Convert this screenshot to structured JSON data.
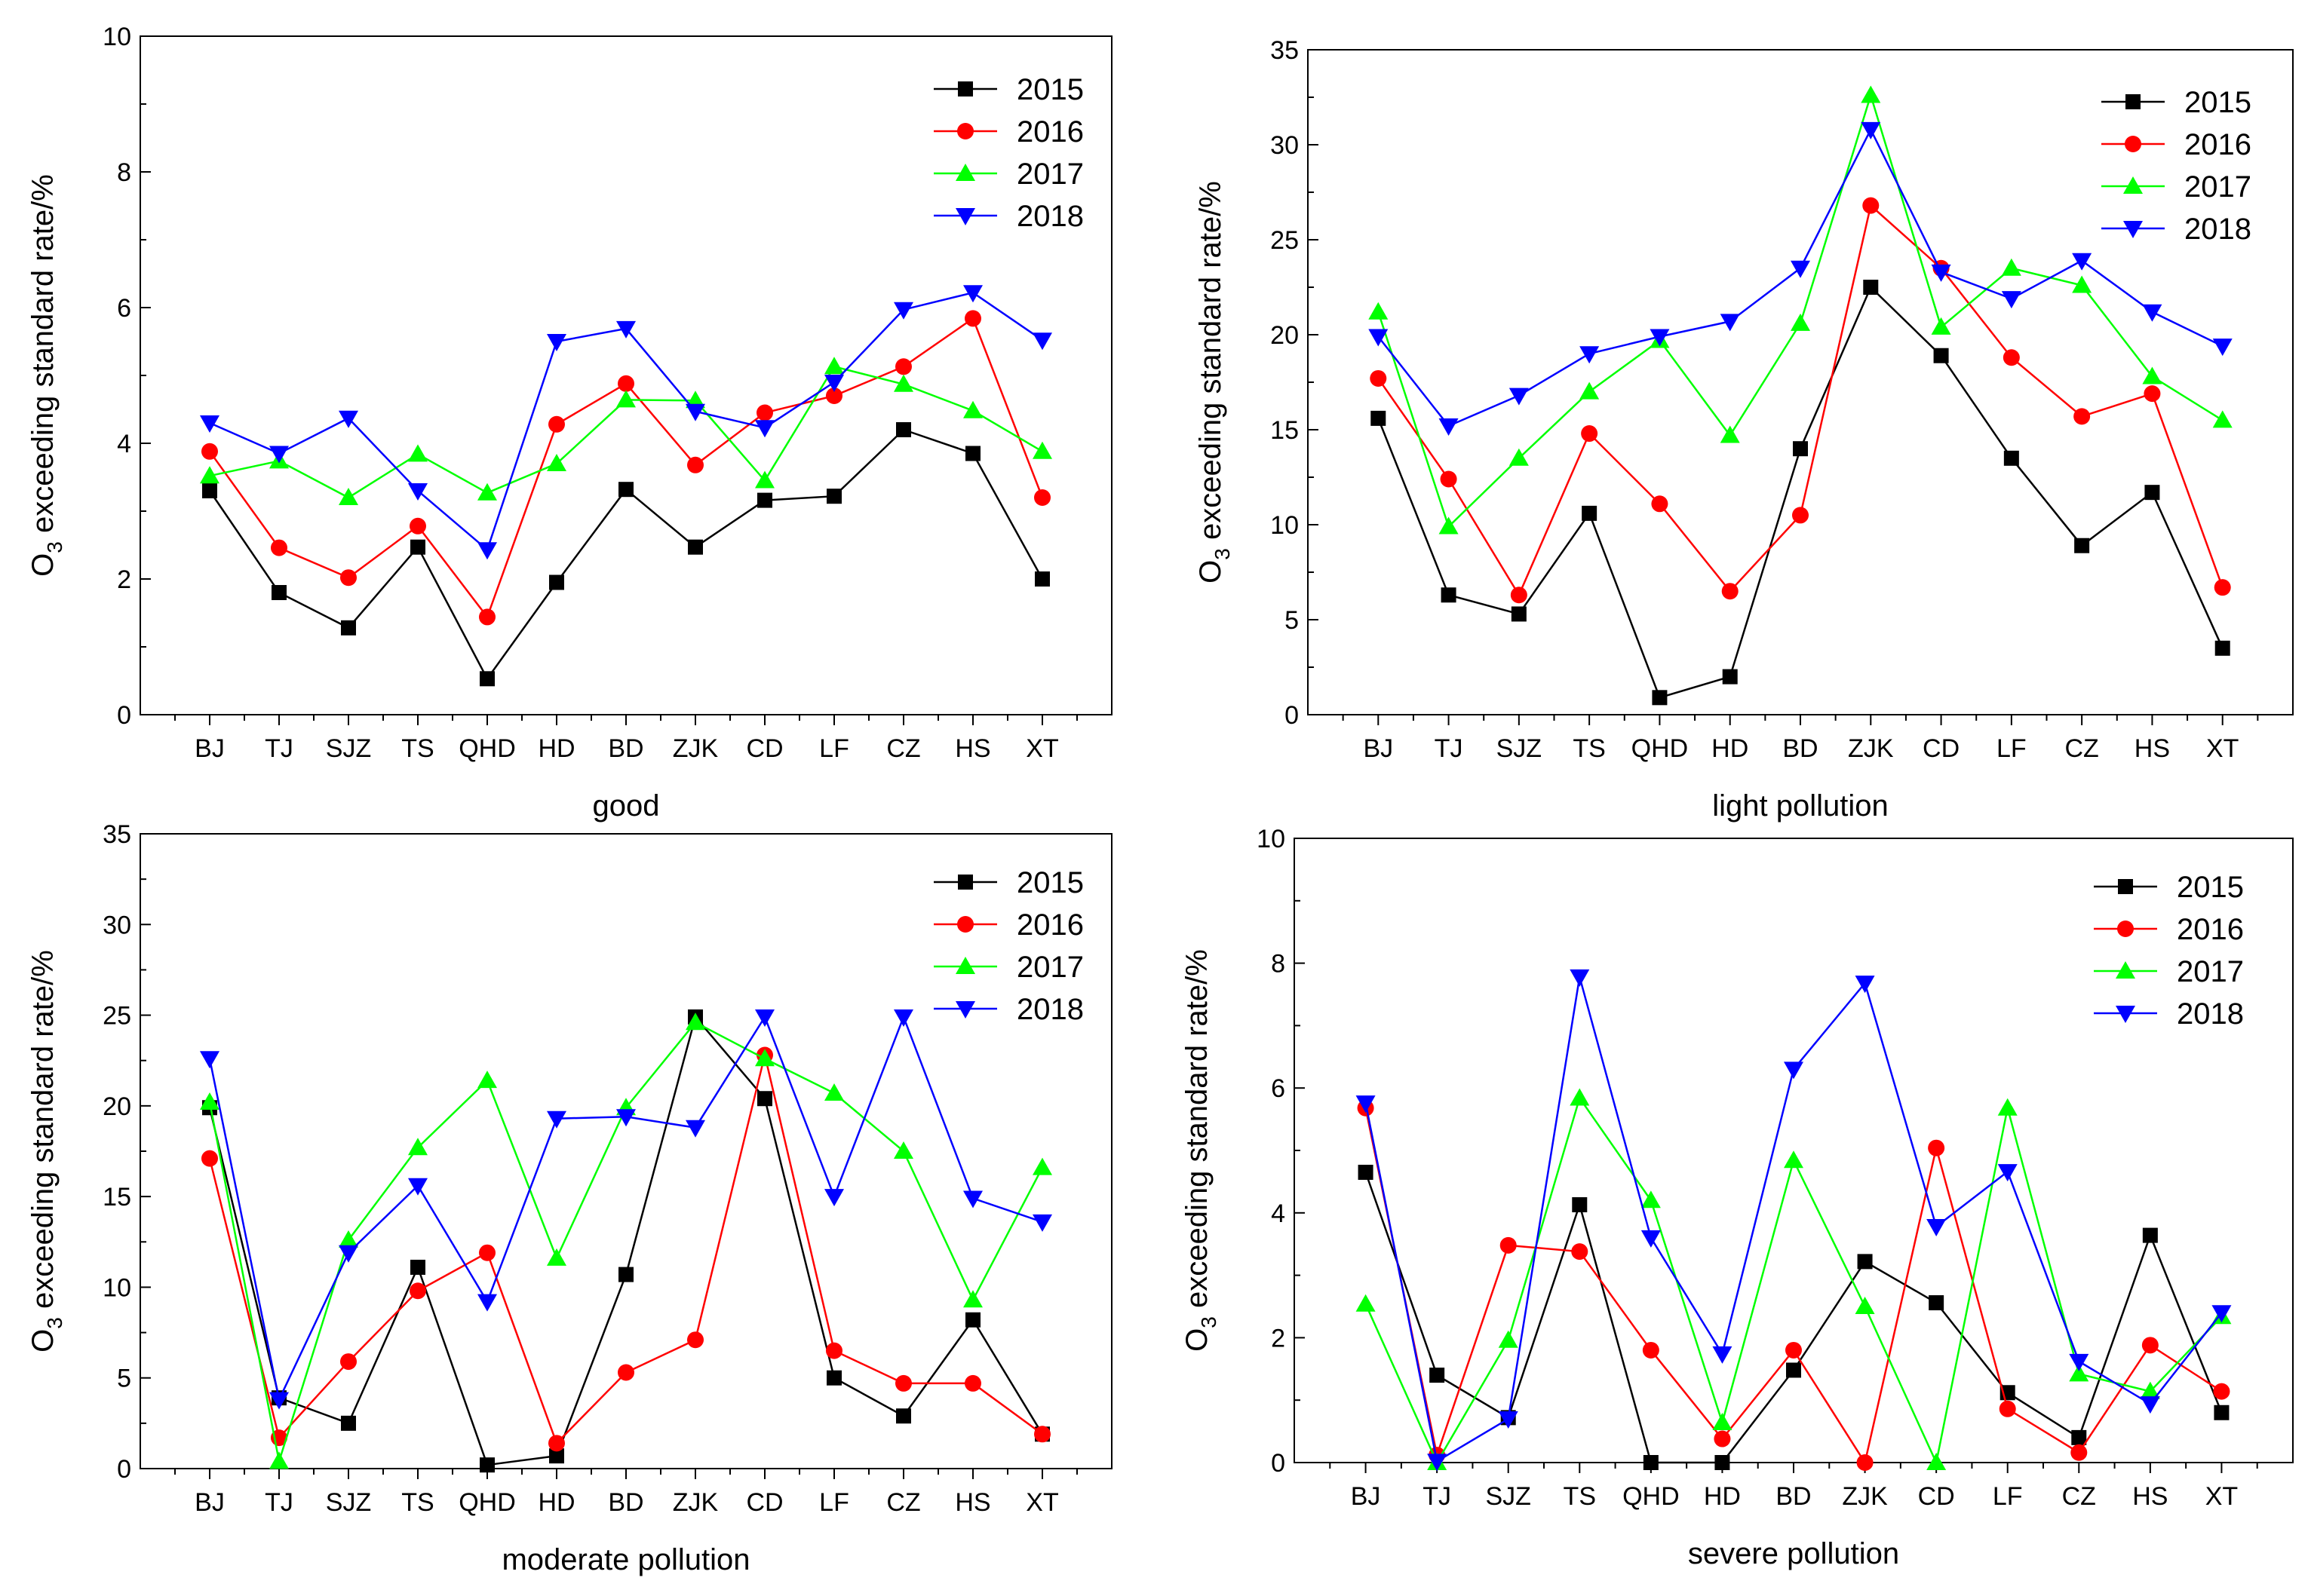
{
  "figure": {
    "series_colors": {
      "2015": "#000000",
      "2016": "#ff0000",
      "2017": "#00ff00",
      "2018": "#0000ff"
    },
    "series_markers": {
      "2015": "square",
      "2016": "circle",
      "2017": "triangle-up",
      "2018": "triangle-down"
    }
  },
  "chart_data": [
    {
      "type": "line",
      "xlabel": "good",
      "ylabel_main": "O",
      "ylabel_sub": "3",
      "ylabel_rest": " exceeding standard rate/%",
      "ylim": [
        0,
        10
      ],
      "yticks": [
        "0",
        "2",
        "4",
        "6",
        "8",
        "10"
      ],
      "categories": [
        "BJ",
        "TJ",
        "SJZ",
        "TS",
        "QHD",
        "HD",
        "BD",
        "ZJK",
        "CD",
        "LF",
        "CZ",
        "HS",
        "XT"
      ],
      "series": [
        {
          "name": "2015",
          "values": [
            3.3,
            1.8,
            1.28,
            2.47,
            0.53,
            1.95,
            3.32,
            2.47,
            3.16,
            3.22,
            4.2,
            3.85,
            2.0
          ]
        },
        {
          "name": "2016",
          "values": [
            3.88,
            2.46,
            2.02,
            2.78,
            1.44,
            4.28,
            4.88,
            3.68,
            4.45,
            4.7,
            5.13,
            5.84,
            3.2
          ]
        },
        {
          "name": "2017",
          "values": [
            3.52,
            3.74,
            3.2,
            3.84,
            3.27,
            3.7,
            4.64,
            4.63,
            3.45,
            5.13,
            4.87,
            4.48,
            3.88
          ]
        },
        {
          "name": "2018",
          "values": [
            4.3,
            3.85,
            4.37,
            3.3,
            2.43,
            5.5,
            5.69,
            4.47,
            4.23,
            4.9,
            5.97,
            6.22,
            5.52
          ]
        }
      ]
    },
    {
      "type": "line",
      "xlabel": "light pollution",
      "ylabel_main": "O",
      "ylabel_sub": "3",
      "ylabel_rest": " exceeding standard rate/%",
      "ylim": [
        0,
        35
      ],
      "yticks": [
        "0",
        "5",
        "10",
        "15",
        "20",
        "25",
        "30",
        "35"
      ],
      "categories": [
        "BJ",
        "TJ",
        "SJZ",
        "TS",
        "QHD",
        "HD",
        "BD",
        "ZJK",
        "CD",
        "LF",
        "CZ",
        "HS",
        "XT"
      ],
      "series": [
        {
          "name": "2015",
          "values": [
            15.6,
            6.3,
            5.3,
            10.6,
            0.9,
            2.0,
            14.0,
            22.5,
            18.9,
            13.5,
            8.9,
            11.7,
            3.5
          ]
        },
        {
          "name": "2016",
          "values": [
            17.7,
            12.4,
            6.3,
            14.8,
            11.1,
            6.5,
            10.5,
            26.8,
            23.5,
            18.8,
            15.7,
            16.9,
            6.7
          ]
        },
        {
          "name": "2017",
          "values": [
            21.2,
            9.9,
            13.5,
            17.0,
            19.7,
            14.7,
            20.6,
            32.6,
            20.4,
            23.5,
            22.6,
            17.8,
            15.5
          ]
        },
        {
          "name": "2018",
          "values": [
            19.9,
            15.2,
            16.8,
            19.0,
            19.9,
            20.7,
            23.5,
            30.8,
            23.3,
            21.9,
            23.9,
            21.2,
            19.4
          ]
        }
      ]
    },
    {
      "type": "line",
      "xlabel": "moderate pollution",
      "ylabel_main": "O",
      "ylabel_sub": "3",
      "ylabel_rest": " exceeding standard rate/%",
      "ylim": [
        0,
        35
      ],
      "yticks": [
        "0",
        "5",
        "10",
        "15",
        "20",
        "25",
        "30",
        "35"
      ],
      "categories": [
        "BJ",
        "TJ",
        "SJZ",
        "TS",
        "QHD",
        "HD",
        "BD",
        "ZJK",
        "CD",
        "LF",
        "CZ",
        "HS",
        "XT"
      ],
      "series": [
        {
          "name": "2015",
          "values": [
            19.9,
            3.9,
            2.5,
            11.1,
            0.2,
            0.7,
            10.7,
            24.9,
            20.4,
            5.0,
            2.9,
            8.2,
            1.9
          ]
        },
        {
          "name": "2016",
          "values": [
            17.1,
            1.7,
            5.9,
            9.8,
            11.9,
            1.4,
            5.3,
            7.1,
            22.8,
            6.5,
            4.7,
            4.7,
            1.9
          ]
        },
        {
          "name": "2017",
          "values": [
            20.2,
            0.4,
            12.6,
            17.7,
            21.4,
            11.6,
            19.9,
            24.6,
            22.6,
            20.7,
            17.5,
            9.3,
            16.6
          ]
        },
        {
          "name": "2018",
          "values": [
            22.6,
            3.8,
            11.9,
            15.6,
            9.2,
            19.3,
            19.4,
            18.8,
            24.9,
            15.0,
            24.9,
            14.9,
            13.6
          ]
        }
      ]
    },
    {
      "type": "line",
      "xlabel": "severe pollution",
      "ylabel_main": "O",
      "ylabel_sub": "3",
      "ylabel_rest": " exceeding standard rate/%",
      "ylim": [
        0,
        10
      ],
      "yticks": [
        "0",
        "2",
        "4",
        "6",
        "8",
        "10"
      ],
      "categories": [
        "BJ",
        "TJ",
        "SJZ",
        "TS",
        "QHD",
        "HD",
        "BD",
        "ZJK",
        "CD",
        "LF",
        "CZ",
        "HS",
        "XT"
      ],
      "series": [
        {
          "name": "2015",
          "values": [
            4.65,
            1.4,
            0.72,
            4.13,
            0.0,
            0.0,
            1.48,
            3.22,
            2.56,
            1.12,
            0.4,
            3.64,
            0.8
          ]
        },
        {
          "name": "2016",
          "values": [
            5.68,
            0.12,
            3.48,
            3.38,
            1.8,
            0.38,
            1.8,
            0.0,
            5.04,
            0.86,
            0.16,
            1.88,
            1.14
          ]
        },
        {
          "name": "2017",
          "values": [
            2.54,
            0.0,
            1.96,
            5.84,
            4.2,
            0.64,
            4.84,
            2.5,
            0.0,
            5.68,
            1.42,
            1.14,
            2.34
          ]
        },
        {
          "name": "2018",
          "values": [
            5.76,
            0.02,
            0.7,
            7.78,
            3.6,
            1.74,
            6.3,
            7.68,
            3.78,
            4.66,
            1.62,
            0.94,
            2.4
          ]
        }
      ]
    }
  ]
}
